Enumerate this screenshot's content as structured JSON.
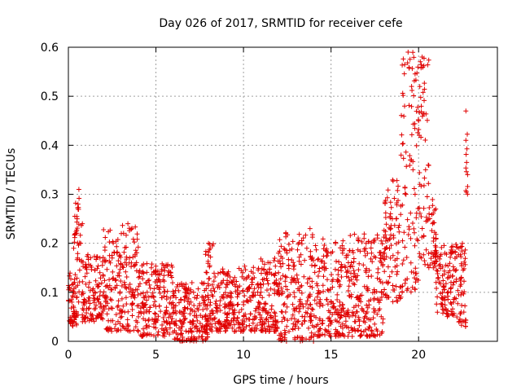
{
  "chart_data": {
    "type": "scatter",
    "title": "Day 026 of 2017, SRMTID for receiver cefe",
    "xlabel": "GPS time / hours",
    "ylabel": "SRMTID / TECUs",
    "xlim": [
      0,
      24.5
    ],
    "ylim": [
      0,
      0.6
    ],
    "xticks": [
      0,
      5,
      10,
      15,
      20
    ],
    "xtick_labels": [
      "0",
      "5",
      "10",
      "15",
      "20"
    ],
    "yticks": [
      0,
      0.1,
      0.2,
      0.3,
      0.4,
      0.5,
      0.6
    ],
    "ytick_labels": [
      "0",
      "0.1",
      "0.2",
      "0.3",
      "0.4",
      "0.5",
      "0.6"
    ],
    "grid": true,
    "marker": "+",
    "color": "#e00000",
    "series": [
      {
        "name": "SRMTID",
        "envelope": [
          {
            "x": [
              0.0,
              0.5
            ],
            "y": [
              0.03,
              0.14
            ]
          },
          {
            "x": [
              0.3,
              0.8
            ],
            "y": [
              0.05,
              0.31
            ]
          },
          {
            "x": [
              0.8,
              2.0
            ],
            "y": [
              0.04,
              0.18
            ]
          },
          {
            "x": [
              2.0,
              4.0
            ],
            "y": [
              0.02,
              0.24
            ]
          },
          {
            "x": [
              4.0,
              6.0
            ],
            "y": [
              0.01,
              0.16
            ]
          },
          {
            "x": [
              6.0,
              8.0
            ],
            "y": [
              0.0,
              0.12
            ]
          },
          {
            "x": [
              7.8,
              8.3
            ],
            "y": [
              0.02,
              0.2
            ]
          },
          {
            "x": [
              8.3,
              10.0
            ],
            "y": [
              0.02,
              0.15
            ]
          },
          {
            "x": [
              10.0,
              12.0
            ],
            "y": [
              0.02,
              0.17
            ]
          },
          {
            "x": [
              12.0,
              14.0
            ],
            "y": [
              0.0,
              0.23
            ]
          },
          {
            "x": [
              14.0,
              16.0
            ],
            "y": [
              0.01,
              0.21
            ]
          },
          {
            "x": [
              16.0,
              18.0
            ],
            "y": [
              0.01,
              0.22
            ]
          },
          {
            "x": [
              18.0,
              19.0
            ],
            "y": [
              0.08,
              0.33
            ]
          },
          {
            "x": [
              19.0,
              20.0
            ],
            "y": [
              0.1,
              0.59
            ]
          },
          {
            "x": [
              20.0,
              20.6
            ],
            "y": [
              0.15,
              0.58
            ]
          },
          {
            "x": [
              20.6,
              21.0
            ],
            "y": [
              0.15,
              0.3
            ]
          },
          {
            "x": [
              21.0,
              22.0
            ],
            "y": [
              0.05,
              0.2
            ]
          },
          {
            "x": [
              22.0,
              22.7
            ],
            "y": [
              0.03,
              0.2
            ]
          },
          {
            "x": [
              22.7,
              22.8
            ],
            "y": [
              0.3,
              0.47
            ]
          }
        ],
        "points": [
          [
            0.05,
            0.11
          ],
          [
            0.1,
            0.04
          ],
          [
            0.2,
            0.08
          ],
          [
            0.3,
            0.19
          ],
          [
            0.4,
            0.22
          ],
          [
            0.5,
            0.25
          ],
          [
            0.55,
            0.28
          ],
          [
            0.6,
            0.31
          ],
          [
            0.7,
            0.2
          ],
          [
            0.8,
            0.24
          ],
          [
            1.0,
            0.15
          ],
          [
            1.2,
            0.12
          ],
          [
            1.5,
            0.1
          ],
          [
            1.8,
            0.14
          ],
          [
            2.2,
            0.09
          ],
          [
            2.5,
            0.17
          ],
          [
            2.8,
            0.07
          ],
          [
            3.2,
            0.12
          ],
          [
            3.4,
            0.24
          ],
          [
            3.6,
            0.16
          ],
          [
            4.0,
            0.05
          ],
          [
            4.5,
            0.1
          ],
          [
            5.0,
            0.04
          ],
          [
            5.5,
            0.15
          ],
          [
            6.0,
            0.07
          ],
          [
            6.5,
            0.03
          ],
          [
            7.0,
            0.08
          ],
          [
            7.5,
            0.02
          ],
          [
            8.0,
            0.2
          ],
          [
            8.1,
            0.19
          ],
          [
            8.5,
            0.06
          ],
          [
            9.0,
            0.11
          ],
          [
            9.5,
            0.13
          ],
          [
            10.0,
            0.08
          ],
          [
            10.5,
            0.12
          ],
          [
            11.0,
            0.1
          ],
          [
            11.5,
            0.14
          ],
          [
            12.0,
            0.18
          ],
          [
            12.5,
            0.09
          ],
          [
            13.0,
            0.12
          ],
          [
            13.5,
            0.05
          ],
          [
            13.8,
            0.23
          ],
          [
            14.0,
            0.0
          ],
          [
            14.5,
            0.15
          ],
          [
            15.0,
            0.18
          ],
          [
            15.5,
            0.08
          ],
          [
            16.0,
            0.13
          ],
          [
            16.5,
            0.06
          ],
          [
            17.0,
            0.2
          ],
          [
            17.5,
            0.1
          ],
          [
            18.0,
            0.18
          ],
          [
            18.5,
            0.25
          ],
          [
            19.0,
            0.38
          ],
          [
            19.2,
            0.48
          ],
          [
            19.4,
            0.59
          ],
          [
            19.6,
            0.52
          ],
          [
            19.8,
            0.3
          ],
          [
            20.0,
            0.45
          ],
          [
            20.2,
            0.58
          ],
          [
            20.4,
            0.35
          ],
          [
            20.6,
            0.26
          ],
          [
            20.8,
            0.24
          ],
          [
            21.0,
            0.12
          ],
          [
            21.5,
            0.18
          ],
          [
            22.0,
            0.08
          ],
          [
            22.3,
            0.04
          ],
          [
            22.5,
            0.2
          ],
          [
            22.7,
            0.47
          ],
          [
            22.7,
            0.41
          ],
          [
            22.8,
            0.34
          ]
        ]
      }
    ]
  }
}
